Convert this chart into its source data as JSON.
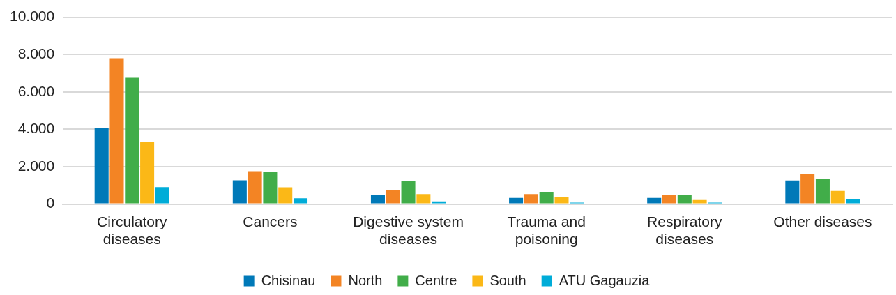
{
  "chart_data": {
    "type": "bar",
    "categories": [
      "Circulatory diseases",
      "Cancers",
      "Digestive system diseases",
      "Trauma and poisoning",
      "Respiratory diseases",
      "Other diseases"
    ],
    "series": [
      {
        "name": "Chisinau",
        "color": "#0079b8",
        "values": [
          4080,
          1270,
          490,
          330,
          330,
          1260
        ]
      },
      {
        "name": "North",
        "color": "#f38424",
        "values": [
          7800,
          1760,
          760,
          540,
          510,
          1600
        ]
      },
      {
        "name": "Centre",
        "color": "#41ad49",
        "values": [
          6760,
          1700,
          1220,
          650,
          500,
          1340
        ]
      },
      {
        "name": "South",
        "color": "#fbb817",
        "values": [
          3340,
          900,
          540,
          360,
          220,
          700
        ]
      },
      {
        "name": "ATU Gagauzia",
        "color": "#00acd8",
        "values": [
          910,
          310,
          140,
          80,
          80,
          260
        ]
      }
    ],
    "ylim": [
      0,
      10000
    ],
    "yticks": [
      {
        "value": 0,
        "label": "0"
      },
      {
        "value": 2000,
        "label": "2.000"
      },
      {
        "value": 4000,
        "label": "4.000"
      },
      {
        "value": 6000,
        "label": "6.000"
      },
      {
        "value": 8000,
        "label": "8.000"
      },
      {
        "value": 10000,
        "label": "10.000"
      }
    ],
    "grid": "y",
    "legend": "bottom"
  }
}
